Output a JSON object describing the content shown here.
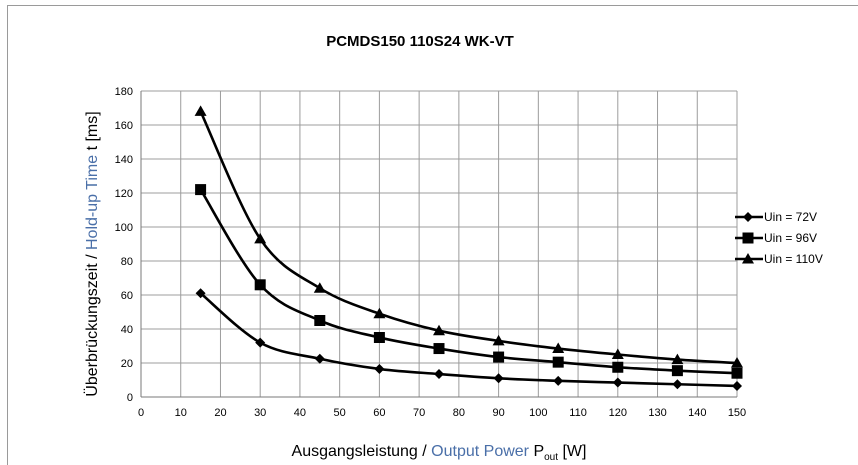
{
  "chart_data": {
    "type": "line",
    "title": "PCMDS150 110S24 WK-VT",
    "xlabel": {
      "de": "Ausgangsleistung / ",
      "en": "Output Power",
      "symbol": " P",
      "sub": "out",
      "unit": " [W]"
    },
    "ylabel": {
      "de": "Überbrückungszeit / ",
      "en": "Hold-up Time",
      "unit": " t [ms]"
    },
    "xlim": [
      0,
      150
    ],
    "ylim": [
      0,
      180
    ],
    "xticks": [
      "0",
      "10",
      "20",
      "30",
      "40",
      "50",
      "60",
      "70",
      "80",
      "90",
      "100",
      "110",
      "120",
      "130",
      "140",
      "150"
    ],
    "yticks": [
      "0",
      "20",
      "40",
      "60",
      "80",
      "100",
      "120",
      "140",
      "160",
      "180"
    ],
    "grid": true,
    "legend": "right",
    "x": [
      15,
      30,
      45,
      60,
      75,
      90,
      105,
      120,
      135,
      150
    ],
    "series": [
      {
        "name": "Uin = 72V",
        "marker": "diamond",
        "values": [
          61,
          32,
          22.5,
          16.5,
          13.5,
          11,
          9.5,
          8.5,
          7.5,
          6.5
        ]
      },
      {
        "name": "Uin = 96V",
        "marker": "square",
        "values": [
          122,
          66,
          45,
          35,
          28.5,
          23.5,
          20.5,
          17.5,
          15.5,
          14
        ]
      },
      {
        "name": "Uin = 110V",
        "marker": "triangle",
        "values": [
          168,
          93,
          64,
          49,
          39,
          33,
          28.5,
          25,
          22,
          20
        ]
      }
    ]
  }
}
